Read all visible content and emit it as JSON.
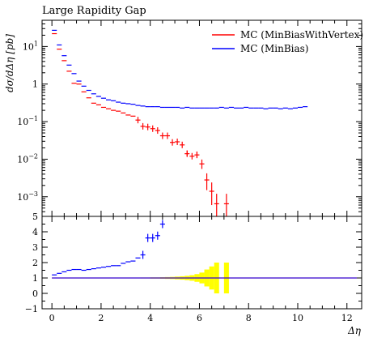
{
  "chart_data": [
    {
      "type": "line",
      "title": "Large Rapidity Gap",
      "xlabel": "",
      "ylabel": "dσ/dΔη [pb]",
      "yscale": "log",
      "xlim": [
        -0.4,
        12.6
      ],
      "ylim": [
        0.0003,
        50
      ],
      "yticks": [
        {
          "v": 0.001,
          "base": "10",
          "exp": "−3"
        },
        {
          "v": 0.01,
          "base": "10",
          "exp": "−2"
        },
        {
          "v": 0.1,
          "base": "10",
          "exp": "−1"
        },
        {
          "v": 1,
          "base": "1",
          "exp": ""
        },
        {
          "v": 10,
          "base": "10",
          "exp": "1"
        }
      ],
      "legend_position": "top-right",
      "series": [
        {
          "name": "MC (MinBiasWithVertex)",
          "color": "#ff0000",
          "points": [
            {
              "x": 0.1,
              "y": 22
            },
            {
              "x": 0.3,
              "y": 8.5
            },
            {
              "x": 0.5,
              "y": 4.2
            },
            {
              "x": 0.7,
              "y": 2.2
            },
            {
              "x": 0.9,
              "y": 1.05
            },
            {
              "x": 1.1,
              "y": 1.0
            },
            {
              "x": 1.3,
              "y": 0.62
            },
            {
              "x": 1.5,
              "y": 0.43
            },
            {
              "x": 1.7,
              "y": 0.31
            },
            {
              "x": 1.9,
              "y": 0.28
            },
            {
              "x": 2.1,
              "y": 0.24
            },
            {
              "x": 2.3,
              "y": 0.22
            },
            {
              "x": 2.5,
              "y": 0.2
            },
            {
              "x": 2.7,
              "y": 0.19
            },
            {
              "x": 2.9,
              "y": 0.17
            },
            {
              "x": 3.1,
              "y": 0.15
            },
            {
              "x": 3.3,
              "y": 0.14
            },
            {
              "x": 3.5,
              "y": 0.11
            },
            {
              "x": 3.7,
              "y": 0.075
            },
            {
              "x": 3.9,
              "y": 0.072
            },
            {
              "x": 4.1,
              "y": 0.065
            },
            {
              "x": 4.3,
              "y": 0.058
            },
            {
              "x": 4.5,
              "y": 0.042
            },
            {
              "x": 4.7,
              "y": 0.042
            },
            {
              "x": 4.9,
              "y": 0.028
            },
            {
              "x": 5.1,
              "y": 0.029
            },
            {
              "x": 5.3,
              "y": 0.024
            },
            {
              "x": 5.5,
              "y": 0.014
            },
            {
              "x": 5.7,
              "y": 0.012
            },
            {
              "x": 5.9,
              "y": 0.013
            },
            {
              "x": 6.1,
              "y": 0.0075
            },
            {
              "x": 6.3,
              "y": 0.0028
            },
            {
              "x": 6.5,
              "y": 0.0014
            },
            {
              "x": 6.7,
              "y": 0.00065
            },
            {
              "x": 7.1,
              "y": 0.00065
            }
          ],
          "err": [
            [
              6.1,
              0.0055,
              0.0098
            ],
            [
              6.3,
              0.0015,
              0.0042
            ],
            [
              6.5,
              0.0006,
              0.0024
            ],
            [
              6.7,
              0.0003,
              0.0012
            ],
            [
              7.1,
              0.0003,
              0.0012
            ],
            [
              5.5,
              0.012,
              0.017
            ],
            [
              5.9,
              0.011,
              0.016
            ]
          ]
        },
        {
          "name": "MC (MinBias)",
          "color": "#0000ff",
          "points": [
            {
              "x": 0.1,
              "y": 27
            },
            {
              "x": 0.3,
              "y": 11
            },
            {
              "x": 0.5,
              "y": 5.7
            },
            {
              "x": 0.7,
              "y": 3.2
            },
            {
              "x": 0.9,
              "y": 1.9
            },
            {
              "x": 1.1,
              "y": 1.2
            },
            {
              "x": 1.3,
              "y": 0.88
            },
            {
              "x": 1.5,
              "y": 0.68
            },
            {
              "x": 1.7,
              "y": 0.55
            },
            {
              "x": 1.9,
              "y": 0.47
            },
            {
              "x": 2.1,
              "y": 0.42
            },
            {
              "x": 2.3,
              "y": 0.38
            },
            {
              "x": 2.5,
              "y": 0.36
            },
            {
              "x": 2.7,
              "y": 0.33
            },
            {
              "x": 2.9,
              "y": 0.31
            },
            {
              "x": 3.1,
              "y": 0.3
            },
            {
              "x": 3.3,
              "y": 0.29
            },
            {
              "x": 3.5,
              "y": 0.27
            },
            {
              "x": 3.7,
              "y": 0.26
            },
            {
              "x": 3.9,
              "y": 0.25
            },
            {
              "x": 4.1,
              "y": 0.25
            },
            {
              "x": 4.3,
              "y": 0.25
            },
            {
              "x": 4.5,
              "y": 0.24
            },
            {
              "x": 4.7,
              "y": 0.24
            },
            {
              "x": 4.9,
              "y": 0.24
            },
            {
              "x": 5.1,
              "y": 0.24
            },
            {
              "x": 5.3,
              "y": 0.23
            },
            {
              "x": 5.5,
              "y": 0.24
            },
            {
              "x": 5.7,
              "y": 0.23
            },
            {
              "x": 5.9,
              "y": 0.23
            },
            {
              "x": 6.1,
              "y": 0.23
            },
            {
              "x": 6.3,
              "y": 0.23
            },
            {
              "x": 6.5,
              "y": 0.23
            },
            {
              "x": 6.7,
              "y": 0.23
            },
            {
              "x": 6.9,
              "y": 0.24
            },
            {
              "x": 7.1,
              "y": 0.23
            },
            {
              "x": 7.3,
              "y": 0.24
            },
            {
              "x": 7.5,
              "y": 0.23
            },
            {
              "x": 7.7,
              "y": 0.23
            },
            {
              "x": 7.9,
              "y": 0.24
            },
            {
              "x": 8.1,
              "y": 0.23
            },
            {
              "x": 8.3,
              "y": 0.23
            },
            {
              "x": 8.5,
              "y": 0.23
            },
            {
              "x": 8.7,
              "y": 0.22
            },
            {
              "x": 8.9,
              "y": 0.23
            },
            {
              "x": 9.1,
              "y": 0.23
            },
            {
              "x": 9.3,
              "y": 0.22
            },
            {
              "x": 9.5,
              "y": 0.23
            },
            {
              "x": 9.7,
              "y": 0.22
            },
            {
              "x": 9.9,
              "y": 0.23
            },
            {
              "x": 10.1,
              "y": 0.24
            },
            {
              "x": 10.3,
              "y": 0.25
            }
          ],
          "err": []
        }
      ]
    },
    {
      "type": "line",
      "title": "",
      "xlabel": "Δη",
      "ylabel": "",
      "xlim": [
        -0.4,
        12.6
      ],
      "ylim": [
        -1,
        5
      ],
      "xticks": [
        0,
        2,
        4,
        6,
        8,
        10,
        12
      ],
      "yticks": [
        -1,
        0,
        1,
        2,
        3,
        4,
        5
      ],
      "reference_line": 1,
      "uncertainty_band_color": "#ffff00",
      "uncertainty_band": [
        [
          3.5,
          0.02
        ],
        [
          3.7,
          0.03
        ],
        [
          3.9,
          0.03
        ],
        [
          4.1,
          0.04
        ],
        [
          4.3,
          0.04
        ],
        [
          4.5,
          0.05
        ],
        [
          4.7,
          0.06
        ],
        [
          4.9,
          0.07
        ],
        [
          5.1,
          0.09
        ],
        [
          5.3,
          0.11
        ],
        [
          5.5,
          0.14
        ],
        [
          5.7,
          0.18
        ],
        [
          5.9,
          0.25
        ],
        [
          6.1,
          0.35
        ],
        [
          6.3,
          0.55
        ],
        [
          6.5,
          0.75
        ],
        [
          6.7,
          1.0
        ],
        [
          7.1,
          1.0
        ]
      ],
      "series": [
        {
          "name": "MC (MinBias)",
          "color": "#0000ff",
          "points": [
            {
              "x": 0.1,
              "y": 1.2
            },
            {
              "x": 0.3,
              "y": 1.3
            },
            {
              "x": 0.5,
              "y": 1.4
            },
            {
              "x": 0.7,
              "y": 1.5
            },
            {
              "x": 0.9,
              "y": 1.55
            },
            {
              "x": 1.1,
              "y": 1.55
            },
            {
              "x": 1.3,
              "y": 1.5
            },
            {
              "x": 1.5,
              "y": 1.55
            },
            {
              "x": 1.7,
              "y": 1.6
            },
            {
              "x": 1.9,
              "y": 1.65
            },
            {
              "x": 2.1,
              "y": 1.7
            },
            {
              "x": 2.3,
              "y": 1.75
            },
            {
              "x": 2.5,
              "y": 1.8
            },
            {
              "x": 2.7,
              "y": 1.8
            },
            {
              "x": 2.9,
              "y": 1.95
            },
            {
              "x": 3.1,
              "y": 2.05
            },
            {
              "x": 3.3,
              "y": 2.1
            },
            {
              "x": 3.5,
              "y": 2.3
            },
            {
              "x": 3.7,
              "y": 2.5
            },
            {
              "x": 3.9,
              "y": 3.6
            },
            {
              "x": 4.1,
              "y": 3.6
            },
            {
              "x": 4.3,
              "y": 3.75
            },
            {
              "x": 4.5,
              "y": 4.5
            }
          ]
        },
        {
          "name": "MC (MinBiasWithVertex)",
          "color": "#ff0000",
          "points": [
            {
              "x": 0.0,
              "y": 1
            },
            {
              "x": 12.4,
              "y": 1
            }
          ]
        }
      ]
    }
  ]
}
